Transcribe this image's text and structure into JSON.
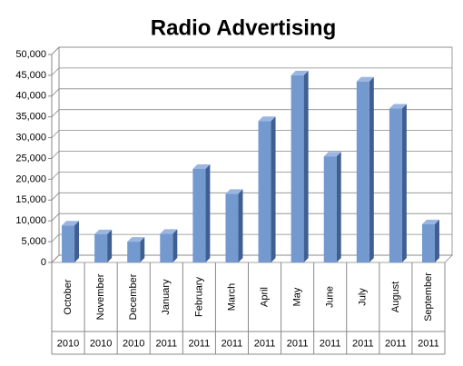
{
  "chart_data": {
    "type": "bar3d",
    "title": "Radio Advertising",
    "categories": [
      "October",
      "November",
      "December",
      "January",
      "February",
      "March",
      "April",
      "May",
      "June",
      "July",
      "August",
      "September"
    ],
    "years": [
      "2010",
      "2010",
      "2010",
      "2011",
      "2011",
      "2011",
      "2011",
      "2011",
      "2011",
      "2011",
      "2011",
      "2011"
    ],
    "values": [
      8900,
      6800,
      5000,
      6900,
      22500,
      16500,
      34000,
      45000,
      25500,
      43500,
      37000,
      9200
    ],
    "color": "#7399cf",
    "ylim": [
      0,
      50000
    ],
    "yticks": [
      0,
      {
        "value": 5000,
        "label": "5,000"
      },
      {
        "value": 10000,
        "label": "10,000"
      },
      {
        "value": 15000,
        "label": "15,000"
      },
      {
        "value": 20000,
        "label": "20,000"
      },
      {
        "value": 25000,
        "label": "25,000"
      },
      {
        "value": 30000,
        "label": "30,000"
      },
      {
        "value": 35000,
        "label": "35,000"
      },
      {
        "value": 40000,
        "label": "40,000"
      },
      {
        "value": 45000,
        "label": "45,000"
      },
      {
        "value": 50000,
        "label": "50,000"
      }
    ],
    "grid": true
  }
}
